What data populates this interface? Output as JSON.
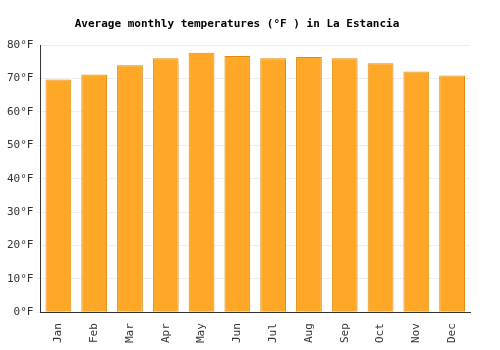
{
  "chart_data": {
    "type": "bar",
    "title": "Average monthly temperatures (°F ) in La Estancia",
    "categories": [
      "Jan",
      "Feb",
      "Mar",
      "Apr",
      "May",
      "Jun",
      "Jul",
      "Aug",
      "Sep",
      "Oct",
      "Nov",
      "Dec"
    ],
    "values": [
      69.7,
      71.2,
      74.0,
      76.1,
      77.7,
      76.8,
      76.1,
      76.5,
      76.1,
      74.6,
      72.1,
      70.9
    ],
    "color": "#ffa726",
    "ylim": [
      0,
      80
    ],
    "yticks": [
      {
        "value": 0,
        "label": "0°F"
      },
      {
        "value": 10,
        "label": "10°F"
      },
      {
        "value": 20,
        "label": "20°F"
      },
      {
        "value": 30,
        "label": "30°F"
      },
      {
        "value": 40,
        "label": "40°F"
      },
      {
        "value": 50,
        "label": "50°F"
      },
      {
        "value": 60,
        "label": "60°F"
      },
      {
        "value": 70,
        "label": "70°F"
      },
      {
        "value": 80,
        "label": "80°F"
      }
    ],
    "grid": true
  }
}
